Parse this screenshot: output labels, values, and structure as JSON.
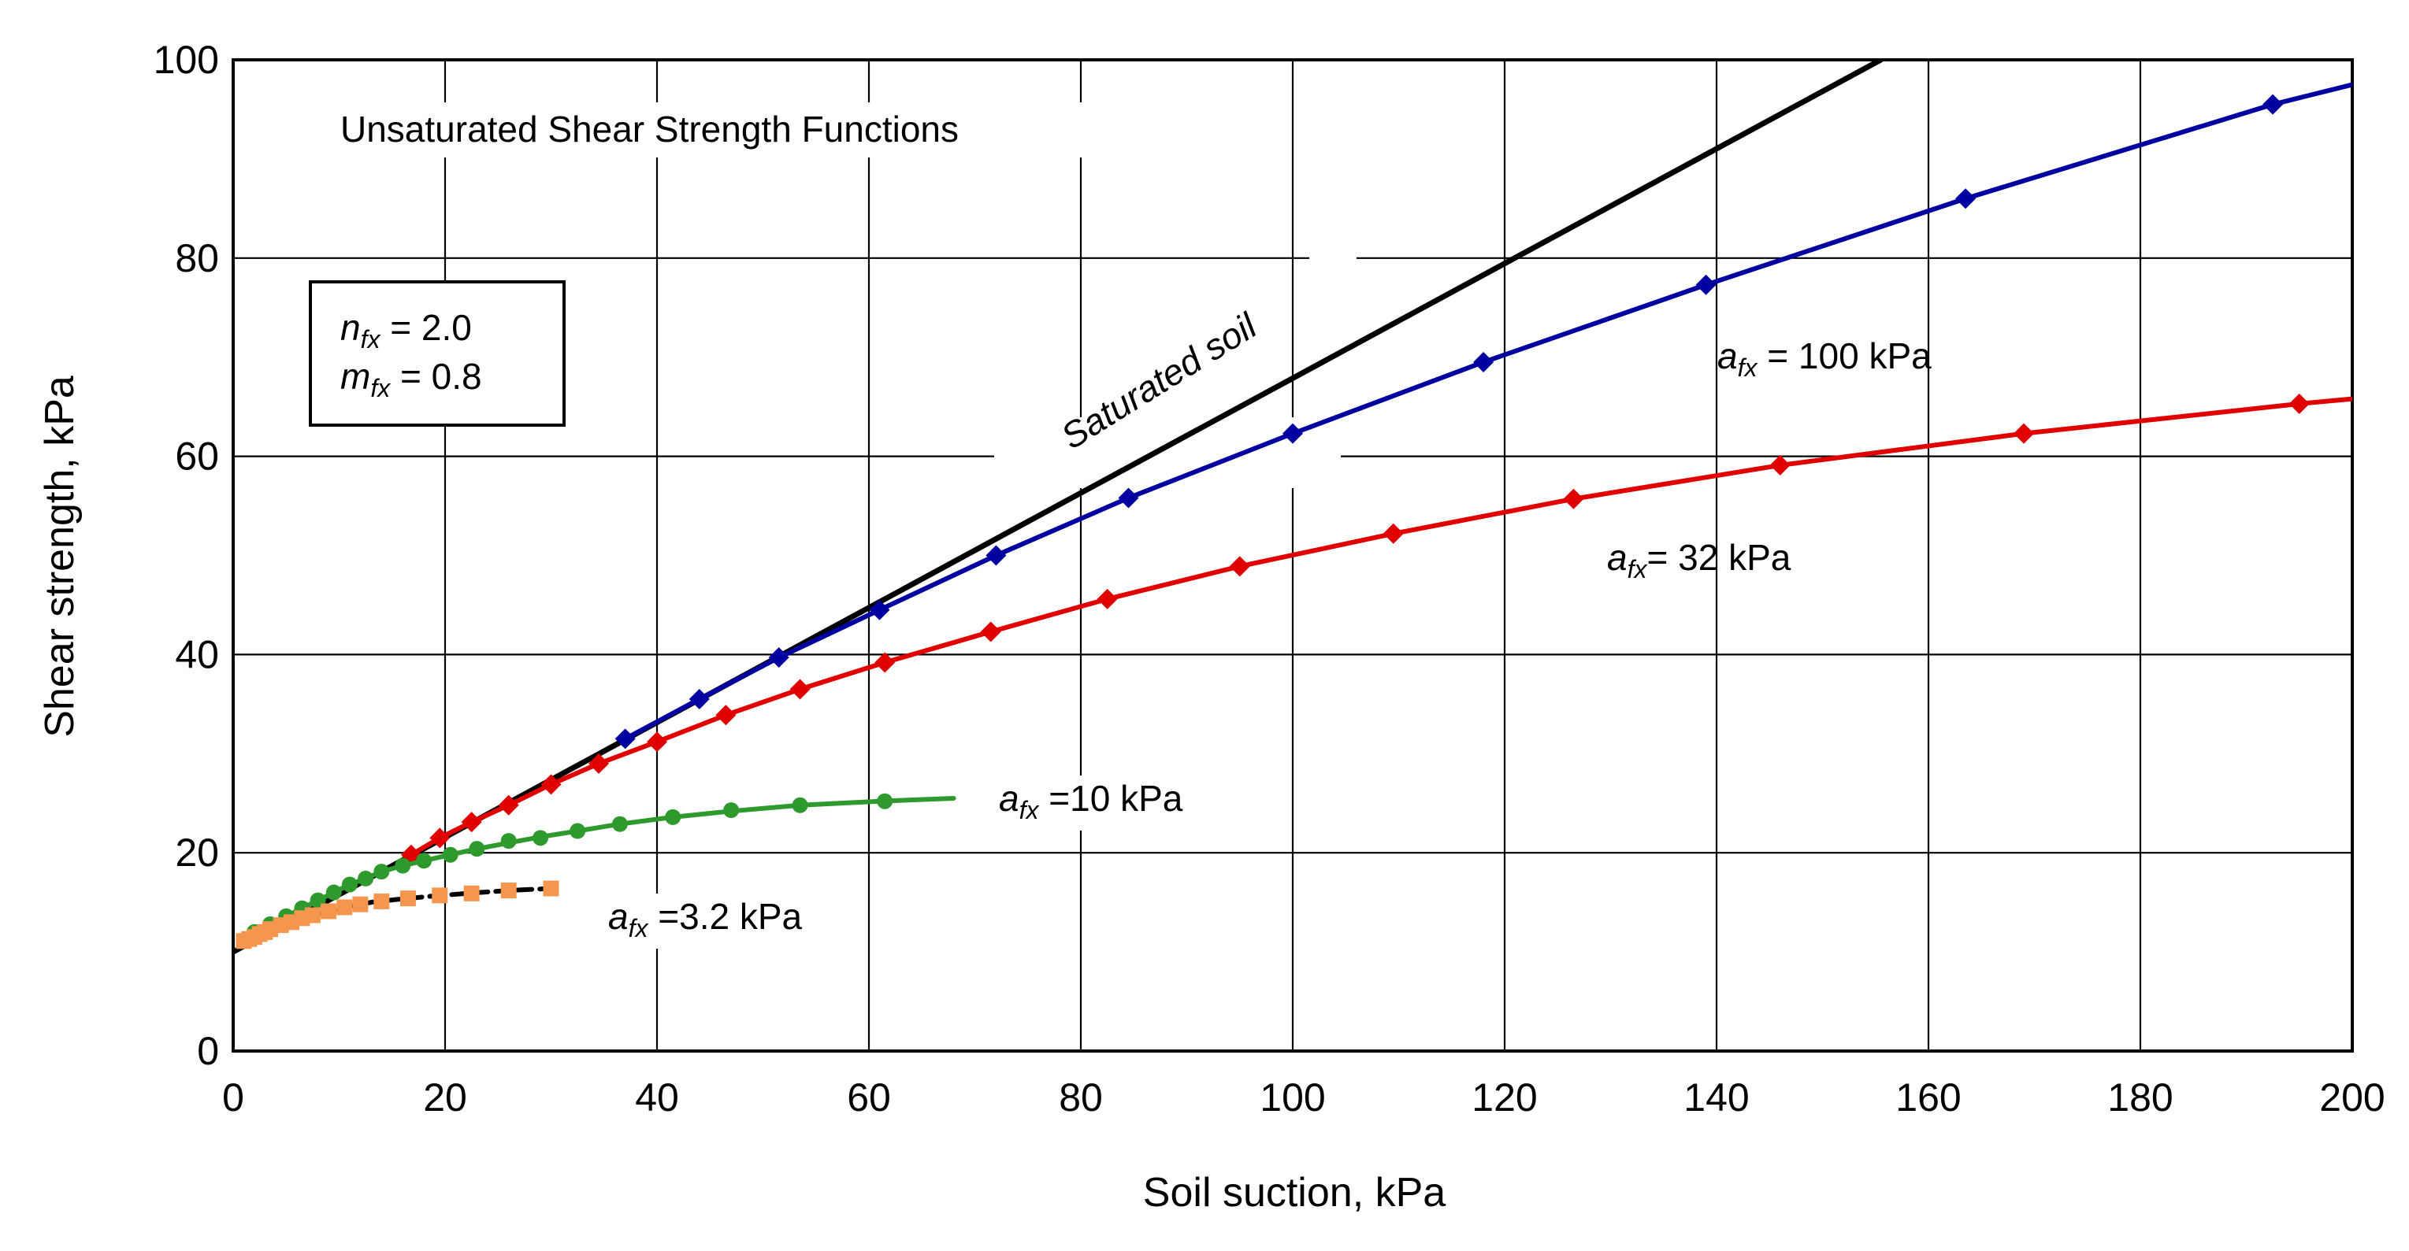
{
  "chart_data": {
    "type": "line",
    "title": "Unsaturated Shear Strength Functions",
    "xlabel": "Soil suction, kPa",
    "ylabel": "Shear strength, kPa",
    "xlim": [
      0,
      200
    ],
    "ylim": [
      0,
      100
    ],
    "x_ticks": [
      0,
      20,
      40,
      60,
      80,
      100,
      120,
      140,
      160,
      180,
      200
    ],
    "y_ticks": [
      0,
      20,
      40,
      60,
      80,
      100
    ],
    "grid": true,
    "parameters": {
      "n_symbol": "n",
      "n_sub": "fx",
      "n_value": " = 2.0",
      "m_symbol": "m",
      "m_sub": "fx",
      "m_value": " = 0.8"
    },
    "series": [
      {
        "name": "Saturated soil",
        "label_text": "Saturated soil",
        "color": "#000000",
        "marker": "none",
        "line": [
          [
            0,
            10
          ],
          [
            155.5,
            100
          ]
        ],
        "points": []
      },
      {
        "name": "a_fx = 100 kPa",
        "label_prefix": "a",
        "label_sub": "fx",
        "label_suffix": " = 100 kPa",
        "color": "#0000A0",
        "marker": "diamond",
        "line": [
          [
            37,
            31.5
          ],
          [
            44,
            35.5
          ],
          [
            51.5,
            39.7
          ],
          [
            61,
            44.5
          ],
          [
            72,
            50
          ],
          [
            84.5,
            55.8
          ],
          [
            100,
            62.3
          ],
          [
            118,
            69.5
          ],
          [
            139,
            77.3
          ],
          [
            163.5,
            86
          ],
          [
            192.5,
            95.5
          ],
          [
            200,
            97.5
          ]
        ],
        "points": [
          [
            37,
            31.5
          ],
          [
            44,
            35.5
          ],
          [
            51.5,
            39.7
          ],
          [
            61,
            44.5
          ],
          [
            72,
            50
          ],
          [
            84.5,
            55.8
          ],
          [
            100,
            62.3
          ],
          [
            118,
            69.5
          ],
          [
            139,
            77.3
          ],
          [
            163.5,
            86
          ],
          [
            192.5,
            95.5
          ]
        ]
      },
      {
        "name": "a_fx = 32 kPa",
        "label_prefix": "a",
        "label_sub": "fx",
        "label_suffix": "= 32 kPa",
        "color": "#E00000",
        "marker": "diamond",
        "line": [
          [
            16.8,
            19.8
          ],
          [
            19.5,
            21.5
          ],
          [
            22.5,
            23.1
          ],
          [
            26,
            24.8
          ],
          [
            30,
            26.9
          ],
          [
            34.5,
            29
          ],
          [
            40,
            31.2
          ],
          [
            46.5,
            33.9
          ],
          [
            53.5,
            36.5
          ],
          [
            61.5,
            39.2
          ],
          [
            71.5,
            42.3
          ],
          [
            82.5,
            45.6
          ],
          [
            95,
            48.9
          ],
          [
            109.5,
            52.2
          ],
          [
            126.5,
            55.7
          ],
          [
            146,
            59.1
          ],
          [
            169,
            62.3
          ],
          [
            195,
            65.3
          ],
          [
            200,
            65.8
          ]
        ],
        "points": [
          [
            16.8,
            19.8
          ],
          [
            19.5,
            21.5
          ],
          [
            22.5,
            23.1
          ],
          [
            26,
            24.8
          ],
          [
            30,
            26.9
          ],
          [
            34.5,
            29
          ],
          [
            40,
            31.2
          ],
          [
            46.5,
            33.9
          ],
          [
            53.5,
            36.5
          ],
          [
            61.5,
            39.2
          ],
          [
            71.5,
            42.3
          ],
          [
            82.5,
            45.6
          ],
          [
            95,
            48.9
          ],
          [
            109.5,
            52.2
          ],
          [
            126.5,
            55.7
          ],
          [
            146,
            59.1
          ],
          [
            169,
            62.3
          ],
          [
            195,
            65.3
          ]
        ]
      },
      {
        "name": "a_fx =10 kPa",
        "label_prefix": "a",
        "label_sub": "fx",
        "label_suffix": " =10 kPa",
        "color": "#2E9A2E",
        "marker": "circle",
        "line": [
          [
            0.5,
            11.2
          ],
          [
            2,
            12
          ],
          [
            3.5,
            12.8
          ],
          [
            5,
            13.6
          ],
          [
            6.5,
            14.4
          ],
          [
            8,
            15.2
          ],
          [
            9.5,
            16
          ],
          [
            11,
            16.8
          ],
          [
            12.5,
            17.4
          ],
          [
            14,
            18.1
          ],
          [
            16,
            18.7
          ],
          [
            18,
            19.2
          ],
          [
            20.5,
            19.8
          ],
          [
            23,
            20.4
          ],
          [
            26,
            21
          ],
          [
            29,
            21.6
          ],
          [
            32.5,
            22.2
          ],
          [
            36.5,
            22.9
          ],
          [
            41.5,
            23.6
          ],
          [
            47,
            24.2
          ],
          [
            53.5,
            24.8
          ],
          [
            61,
            25.2
          ],
          [
            68,
            25.5
          ]
        ],
        "points": [
          [
            2,
            12
          ],
          [
            3.5,
            12.8
          ],
          [
            5,
            13.6
          ],
          [
            6.5,
            14.4
          ],
          [
            8,
            15.2
          ],
          [
            9.5,
            16
          ],
          [
            11,
            16.8
          ],
          [
            12.5,
            17.4
          ],
          [
            14,
            18.1
          ],
          [
            16,
            18.7
          ],
          [
            18,
            19.2
          ],
          [
            20.5,
            19.8
          ],
          [
            23,
            20.4
          ],
          [
            26,
            21.2
          ],
          [
            29,
            21.5
          ],
          [
            32.5,
            22.2
          ],
          [
            36.5,
            22.9
          ],
          [
            41.5,
            23.6
          ],
          [
            47,
            24.3
          ],
          [
            53.5,
            24.8
          ],
          [
            61.5,
            25.2
          ]
        ]
      },
      {
        "name": "a_fx =3.2 kPa",
        "label_prefix": "a",
        "label_sub": "fx",
        "label_suffix": " =3.2 kPa",
        "color": "#F5964F",
        "marker": "square",
        "line": [
          [
            0.5,
            10.8
          ],
          [
            1.5,
            11.3
          ],
          [
            2.5,
            11.8
          ],
          [
            3.5,
            12.3
          ],
          [
            4.5,
            12.7
          ],
          [
            6,
            13.2
          ],
          [
            7.5,
            13.7
          ],
          [
            9,
            14.1
          ],
          [
            11,
            14.6
          ],
          [
            13,
            15
          ],
          [
            15.5,
            15.3
          ],
          [
            18.5,
            15.6
          ],
          [
            22,
            15.9
          ],
          [
            26,
            16.2
          ],
          [
            30,
            16.4
          ]
        ],
        "points": [
          [
            1,
            11.1
          ],
          [
            1.5,
            11.3
          ],
          [
            2,
            11.5
          ],
          [
            2.5,
            11.8
          ],
          [
            3,
            12
          ],
          [
            3.5,
            12.3
          ],
          [
            4.5,
            12.7
          ],
          [
            5.5,
            13
          ],
          [
            6.5,
            13.4
          ],
          [
            7.5,
            13.7
          ],
          [
            9,
            14.1
          ],
          [
            10.5,
            14.5
          ],
          [
            12,
            14.8
          ],
          [
            14,
            15.1
          ],
          [
            16.5,
            15.4
          ],
          [
            19.5,
            15.7
          ],
          [
            22.5,
            15.9
          ],
          [
            26,
            16.2
          ],
          [
            30,
            16.4
          ]
        ]
      }
    ]
  }
}
